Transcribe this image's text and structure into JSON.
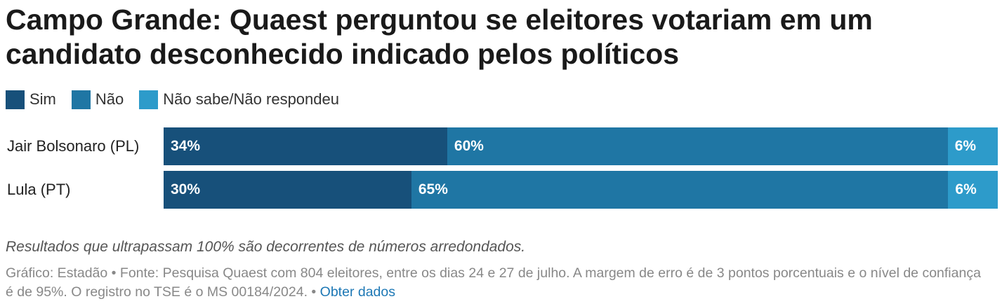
{
  "chart_data": {
    "type": "bar",
    "orientation": "horizontal",
    "stacked": true,
    "title": "Campo Grande: Quaest perguntou se eleitores votariam em um candidato desconhecido indicado pelos políticos",
    "categories": [
      "Jair Bolsonaro (PL)",
      "Lula (PT)"
    ],
    "series": [
      {
        "name": "Sim",
        "color": "#17507a",
        "values": [
          34,
          30
        ],
        "labels": [
          "34%",
          "30%"
        ]
      },
      {
        "name": "Não",
        "color": "#1f76a4",
        "values": [
          60,
          65
        ],
        "labels": [
          "60%",
          "65%"
        ]
      },
      {
        "name": "Não sabe/Não respondeu",
        "color": "#2d9bca",
        "values": [
          6,
          6
        ],
        "labels": [
          "6%",
          "6%"
        ]
      }
    ],
    "legend_position": "top-left",
    "grid": false,
    "xlim": [
      0,
      100
    ]
  },
  "note": "Resultados que ultrapassam 100% são decorrentes de números arredondados.",
  "footer": {
    "source": "Gráfico: Estadão • Fonte: Pesquisa Quaest com 804 eleitores, entre os dias 24 e 27 de julho. A margem de erro é de 3 pontos porcentuais e o nível de confiança é de 95%. O registro no TSE é o MS 00184/2024. ",
    "link_prefix": " • ",
    "link_label": "Obter dados"
  }
}
